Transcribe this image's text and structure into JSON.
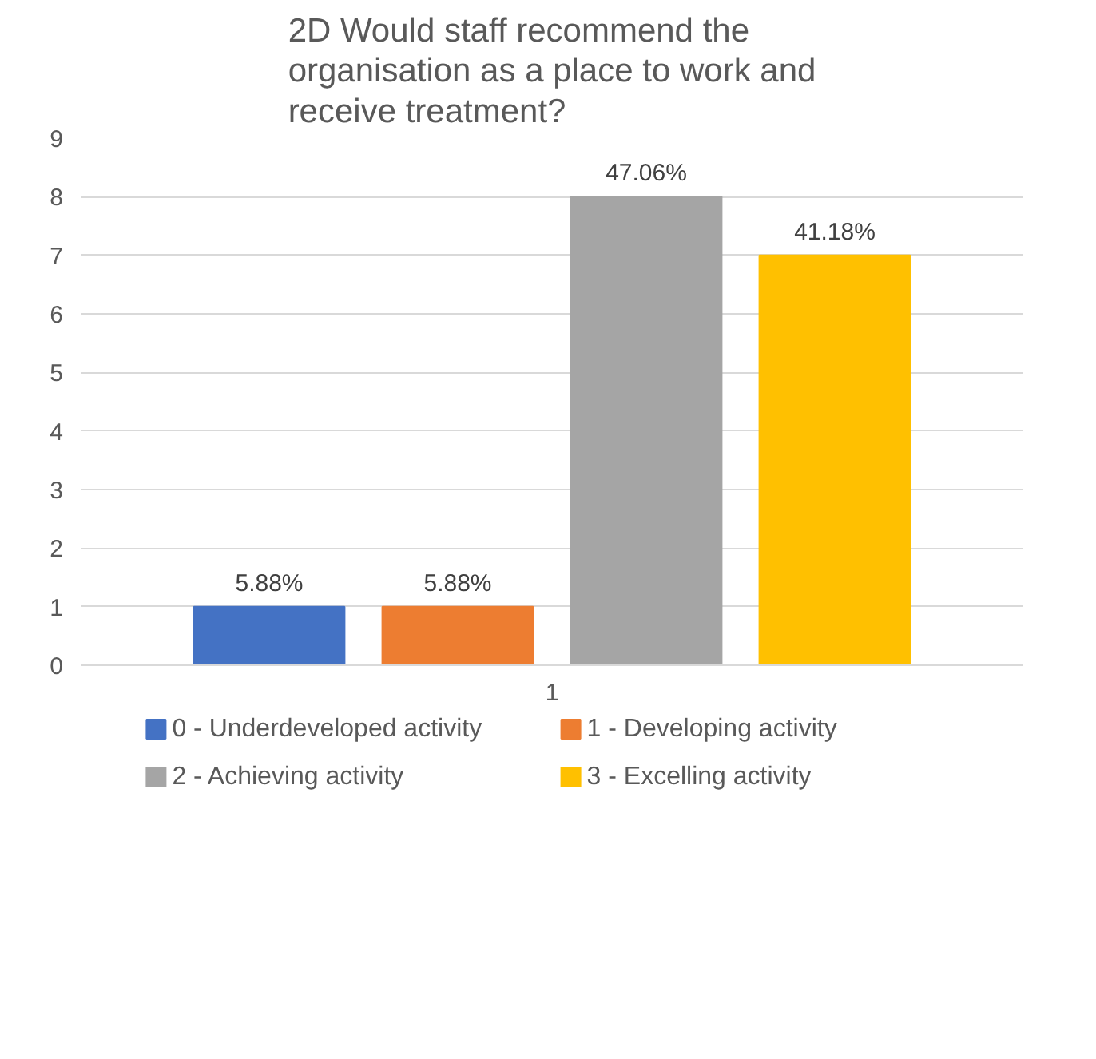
{
  "chart_data": {
    "type": "bar",
    "title": "2D Would staff recommend the organisation as a place to work and receive treatment?",
    "categories": [
      "1"
    ],
    "series": [
      {
        "name": "0 - Underdeveloped activity",
        "color": "#4472c4",
        "values": [
          1
        ]
      },
      {
        "name": "1 - Developing activity",
        "color": "#ed7d31",
        "values": [
          1
        ]
      },
      {
        "name": "2 - Achieving activity",
        "color": "#a5a5a5",
        "values": [
          8
        ]
      },
      {
        "name": "3 - Excelling activity",
        "color": "#ffc000",
        "values": [
          7
        ]
      }
    ],
    "annotations": [
      "5.88%",
      "5.88%",
      "47.06%",
      "41.18%"
    ],
    "ylim": [
      0,
      9
    ],
    "yticks": [
      0,
      1,
      2,
      3,
      4,
      5,
      6,
      7,
      8,
      9
    ],
    "grid": "y",
    "legend": "bottom"
  }
}
